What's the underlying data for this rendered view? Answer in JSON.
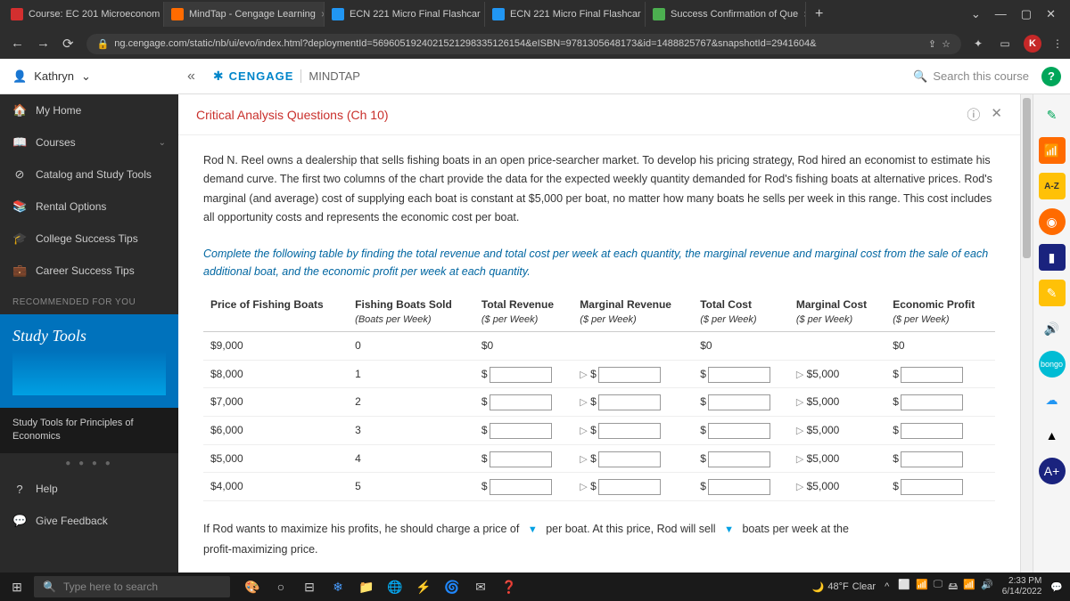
{
  "browser": {
    "tabs": [
      {
        "label": "Course: EC 201 Microeconom",
        "icon_bg": "#d32f2f"
      },
      {
        "label": "MindTap - Cengage Learning",
        "icon_bg": "#ff6b00"
      },
      {
        "label": "ECN 221 Micro Final Flashcar",
        "icon_bg": "#2196f3"
      },
      {
        "label": "ECN 221 Micro Final Flashcar",
        "icon_bg": "#2196f3"
      },
      {
        "label": "Success Confirmation of Que",
        "icon_bg": "#4caf50"
      }
    ],
    "url": "ng.cengage.com/static/nb/ui/evo/index.html?deploymentId=5696051924021521298335126154&eISBN=9781305648173&id=1488825767&snapshotId=2941604&",
    "k_badge": "K"
  },
  "header": {
    "user_name": "Kathryn",
    "brand": "CENGAGE",
    "product": "MINDTAP",
    "search_placeholder": "Search this course",
    "help": "?"
  },
  "sidebar": {
    "items": [
      {
        "icon": "🏠",
        "label": "My Home"
      },
      {
        "icon": "📖",
        "label": "Courses",
        "chevron": true
      },
      {
        "icon": "⊘",
        "label": "Catalog and Study Tools"
      },
      {
        "icon": "📚",
        "label": "Rental Options"
      },
      {
        "icon": "🎓",
        "label": "College Success Tips"
      },
      {
        "icon": "💼",
        "label": "Career Success Tips"
      }
    ],
    "rec_header": "RECOMMENDED FOR YOU",
    "promo_title": "Study Tools",
    "promo_sub": "Study Tools for Principles of Economics",
    "help_label": "Help",
    "feedback_label": "Give Feedback"
  },
  "content": {
    "title": "Critical Analysis Questions (Ch 10)",
    "intro": "Rod N. Reel owns a dealership that sells fishing boats in an open price-searcher market. To develop his pricing strategy, Rod hired an economist to estimate his demand curve. The first two columns of the chart provide the data for the expected weekly quantity demanded for Rod's fishing boats at alternative prices. Rod's marginal (and average) cost of supplying each boat is constant at $5,000 per boat, no matter how many boats he sells per week in this range. This cost includes all opportunity costs and represents the economic cost per boat.",
    "instruction": "Complete the following table by finding the total revenue and total cost per week at each quantity, the marginal revenue and marginal cost from the sale of each additional boat, and the economic profit per week at each quantity.",
    "table": {
      "columns": [
        {
          "main": "Price of Fishing Boats",
          "sub": ""
        },
        {
          "main": "Fishing Boats Sold",
          "sub": "(Boats per Week)"
        },
        {
          "main": "Total Revenue",
          "sub": "($ per Week)"
        },
        {
          "main": "Marginal Revenue",
          "sub": "($ per Week)"
        },
        {
          "main": "Total Cost",
          "sub": "($ per Week)"
        },
        {
          "main": "Marginal Cost",
          "sub": "($ per Week)"
        },
        {
          "main": "Economic Profit",
          "sub": "($ per Week)"
        }
      ],
      "prices": [
        "$9,000",
        "$8,000",
        "$7,000",
        "$6,000",
        "$5,000",
        "$4,000"
      ],
      "qty": [
        "0",
        "1",
        "2",
        "3",
        "4",
        "5"
      ],
      "tr_first": "$0",
      "tc_first": "$0",
      "ep_first": "$0",
      "mc_values": [
        "$5,000",
        "$5,000",
        "$5,000",
        "$5,000",
        "$5,000"
      ]
    },
    "followup_1": "If Rod wants to maximize his profits, he should charge a price of",
    "followup_2": "per boat. At this price, Rod will sell",
    "followup_3": "boats per week at the",
    "followup_4": "profit-maximizing price."
  },
  "taskbar": {
    "search_placeholder": "Type here to search",
    "weather_temp": "48°F",
    "weather_cond": "Clear",
    "time": "2:33 PM",
    "date": "6/14/2022"
  }
}
